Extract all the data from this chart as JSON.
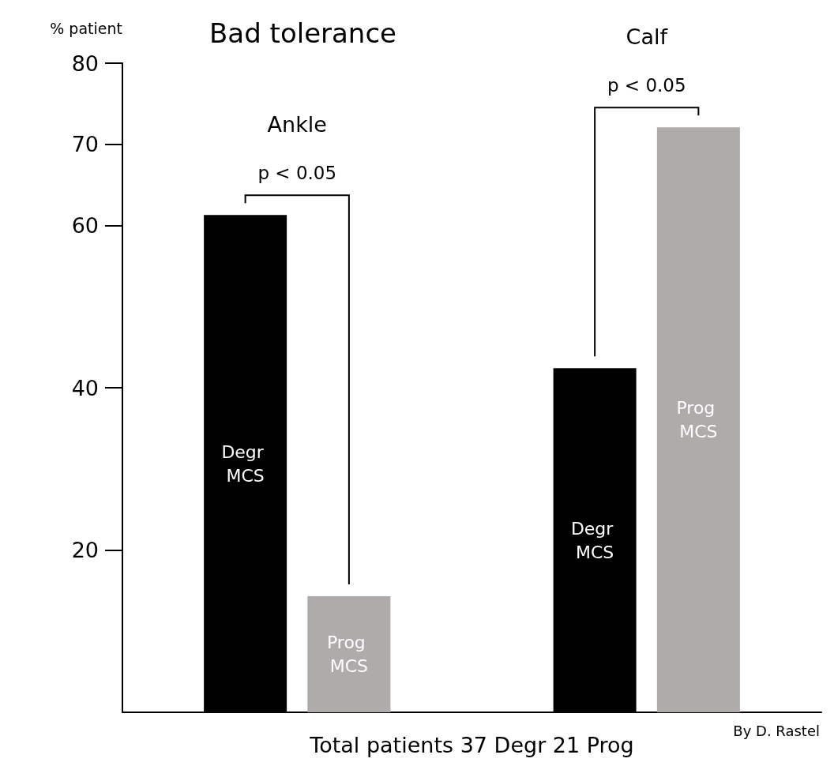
{
  "chart_data": {
    "type": "bar",
    "title": "Bad tolerance",
    "ylabel": "% patient",
    "xlabel": "Total patients 37 Degr 21 Prog",
    "categories": [
      "Ankle",
      "Calf"
    ],
    "series": [
      {
        "name": "Degr MCS",
        "color": "#000000",
        "values": [
          61.3,
          42.4
        ]
      },
      {
        "name": "Prog MCS",
        "color": "#afabab",
        "values": [
          14.3,
          72.1
        ]
      }
    ],
    "ylim": [
      0,
      80
    ],
    "yticks": [
      20,
      40,
      60,
      70,
      80
    ],
    "grid": false,
    "legend": false,
    "annotations": [
      "p < 0.05",
      "p < 0.05",
      "By D. Rastel"
    ]
  }
}
